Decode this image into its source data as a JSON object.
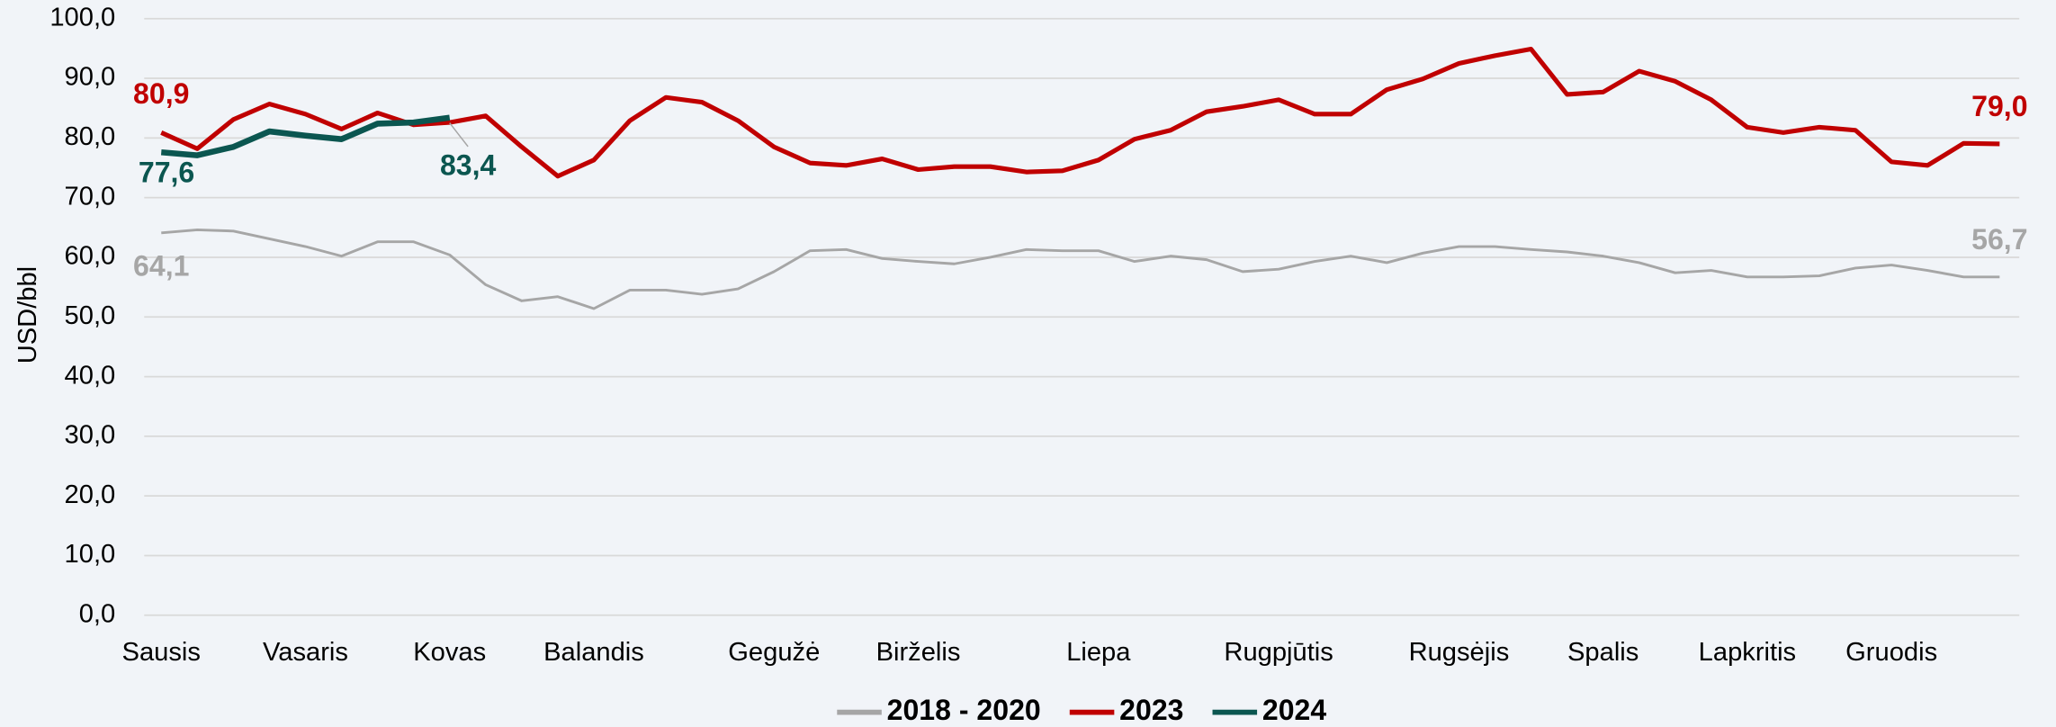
{
  "chart_data": {
    "type": "line",
    "y_label": "USD/bbl",
    "categories": [
      "Sausis",
      null,
      null,
      null,
      "Vasaris",
      null,
      null,
      null,
      "Kovas",
      null,
      null,
      null,
      "Balandis",
      null,
      null,
      null,
      null,
      "Gegužė",
      null,
      null,
      null,
      "Birželis",
      null,
      null,
      null,
      null,
      "Liepa",
      null,
      null,
      null,
      null,
      "Rugpjūtis",
      null,
      null,
      null,
      null,
      "Rugsėjis",
      null,
      null,
      null,
      "Spalis",
      null,
      null,
      null,
      "Lapkritis",
      null,
      null,
      null,
      "Gruodis",
      null,
      null,
      null
    ],
    "series": [
      {
        "name": "2018 - 2020",
        "color": "#a6a6a6",
        "values": [
          64.1,
          64.6,
          64.4,
          63.1,
          61.8,
          60.2,
          62.6,
          62.6,
          60.4,
          55.4,
          52.7,
          53.4,
          51.4,
          54.5,
          54.5,
          53.8,
          54.7,
          57.6,
          61.1,
          61.3,
          59.8,
          59.3,
          58.9,
          60.0,
          61.3,
          61.1,
          61.1,
          59.3,
          60.2,
          59.6,
          57.6,
          58.0,
          59.3,
          60.2,
          59.1,
          60.7,
          61.8,
          61.8,
          61.3,
          60.9,
          60.2,
          59.1,
          57.4,
          57.8,
          56.7,
          56.7,
          56.9,
          58.2,
          58.7,
          57.8,
          56.7,
          56.7
        ],
        "value_labels": [
          "64,1",
          null,
          null,
          null,
          null,
          null,
          null,
          null,
          null,
          null,
          null,
          null,
          null,
          null,
          null,
          null,
          null,
          null,
          null,
          null,
          null,
          null,
          null,
          null,
          null,
          null,
          null,
          null,
          null,
          null,
          null,
          null,
          null,
          null,
          null,
          null,
          null,
          null,
          null,
          null,
          null,
          null,
          null,
          null,
          null,
          null,
          null,
          null,
          null,
          null,
          null,
          "56,7"
        ]
      },
      {
        "name": "2023",
        "color": "#c00000",
        "values": [
          80.9,
          78.2,
          83.1,
          85.7,
          84.0,
          81.5,
          84.2,
          82.2,
          82.6,
          83.7,
          78.5,
          73.6,
          76.3,
          82.9,
          86.8,
          86.0,
          82.9,
          78.5,
          75.8,
          75.4,
          76.5,
          74.7,
          75.2,
          75.2,
          74.3,
          74.5,
          76.3,
          79.8,
          81.3,
          84.4,
          85.3,
          86.4,
          84.0,
          84.0,
          88.1,
          89.9,
          92.5,
          93.8,
          94.9,
          87.3,
          87.7,
          91.2,
          89.5,
          86.4,
          81.8,
          80.9,
          81.8,
          81.3,
          76.0,
          75.4,
          79.1,
          79.0
        ],
        "value_labels": [
          "80,9",
          null,
          null,
          null,
          null,
          null,
          null,
          null,
          null,
          null,
          null,
          null,
          null,
          null,
          null,
          null,
          null,
          null,
          null,
          null,
          null,
          null,
          null,
          null,
          null,
          null,
          null,
          null,
          null,
          null,
          null,
          null,
          null,
          null,
          null,
          null,
          null,
          null,
          null,
          null,
          null,
          null,
          null,
          null,
          null,
          null,
          null,
          null,
          null,
          null,
          null,
          "79,0"
        ]
      },
      {
        "name": "2024",
        "color": "#0b5650",
        "values": [
          77.6,
          77.1,
          78.5,
          81.1,
          80.4,
          79.8,
          82.4,
          82.6,
          83.4,
          null,
          null,
          null,
          null,
          null,
          null,
          null,
          null,
          null,
          null,
          null,
          null,
          null,
          null,
          null,
          null,
          null,
          null,
          null,
          null,
          null,
          null,
          null,
          null,
          null,
          null,
          null,
          null,
          null,
          null,
          null,
          null,
          null,
          null,
          null,
          null,
          null,
          null,
          null,
          null,
          null,
          null,
          null
        ],
        "value_labels": [
          "77,6",
          null,
          null,
          null,
          null,
          null,
          null,
          null,
          "83,4",
          null,
          null,
          null,
          null,
          null,
          null,
          null,
          null,
          null,
          null,
          null,
          null,
          null,
          null,
          null,
          null,
          null,
          null,
          null,
          null,
          null,
          null,
          null,
          null,
          null,
          null,
          null,
          null,
          null,
          null,
          null,
          null,
          null,
          null,
          null,
          null,
          null,
          null,
          null,
          null,
          null,
          null,
          null
        ]
      }
    ],
    "ylim": [
      0,
      100
    ],
    "yticks": [
      {
        "value": 0,
        "label": "0,0"
      },
      {
        "value": 10,
        "label": "10,0"
      },
      {
        "value": 20,
        "label": "20,0"
      },
      {
        "value": 30,
        "label": "30,0"
      },
      {
        "value": 40,
        "label": "40,0"
      },
      {
        "value": 50,
        "label": "50,0"
      },
      {
        "value": 60,
        "label": "60,0"
      },
      {
        "value": 70,
        "label": "70,0"
      },
      {
        "value": 80,
        "label": "80,0"
      },
      {
        "value": 90,
        "label": "90,0"
      },
      {
        "value": 100,
        "label": "100,0"
      }
    ],
    "grid": true,
    "legend": "bottom"
  }
}
